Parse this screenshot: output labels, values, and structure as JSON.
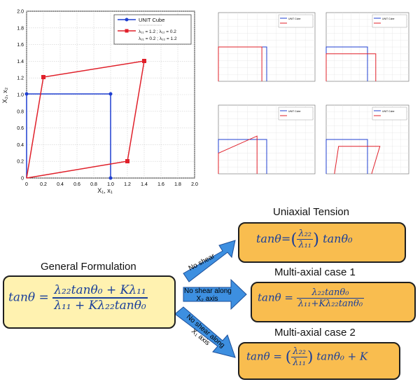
{
  "main_plot": {
    "x_label": "X₁, x₁",
    "y_label": "X₂, x₂",
    "x_ticks": [
      "0",
      "0.2",
      "0.4",
      "0.6",
      "0.8",
      "1.0",
      "1.2",
      "1.4",
      "1.6",
      "1.8",
      "2.0"
    ],
    "y_ticks": [
      "0",
      "0.2",
      "0.4",
      "0.6",
      "0.8",
      "1.0",
      "1.2",
      "1.4",
      "1.6",
      "1.8",
      "2.0"
    ],
    "legend": {
      "unit_cube": "UNIT Cube",
      "deformed_line1": "λ₁₁ = 1.2 ; λ₁₂ = 0.2",
      "deformed_line2": "λ₂₁ = 0.2 ; λ₂₂ = 1.2"
    },
    "colors": {
      "unit": "#1f3fd0",
      "deformed": "#e0202a"
    }
  },
  "mini_plots": {
    "legend_unit": "UNIT Cube"
  },
  "general": {
    "title": "General Formulation",
    "lhs": "tanθ =",
    "numerator": "λ₂₂tanθ₀ + Kλ₁₁",
    "denominator": "λ₁₁ + Kλ₂₂tanθ₀"
  },
  "uniaxial": {
    "title": "Uniaxial Tension",
    "lhs": "tanθ=",
    "frac_num": "λ₂₂",
    "frac_den": "λ₁₁",
    "tail": "tanθ₀"
  },
  "multi1": {
    "title": "Multi-axial case 1",
    "lhs": "tanθ =",
    "numerator": "λ₂₂tanθ₀",
    "denominator": "λ₁₁+Kλ₂₂tanθ₀"
  },
  "multi2": {
    "title": "Multi-axial case 2",
    "lhs": "tanθ =",
    "frac_num": "λ₂₂",
    "frac_den": "λ₁₁",
    "tail": "tanθ₀ + K"
  },
  "arrows": {
    "arrow1": "No shear",
    "arrow2_line1": "No shear along",
    "arrow2_line2": "X₂ axis",
    "arrow3_line1": "No shear along",
    "arrow3_line2": "X₁ axis"
  },
  "colors": {
    "accent_blue": "#3d8fe0",
    "formula_blue": "#1a3f9a",
    "box_orange": "#f9bd4f",
    "box_yellow": "#fff2b0"
  }
}
